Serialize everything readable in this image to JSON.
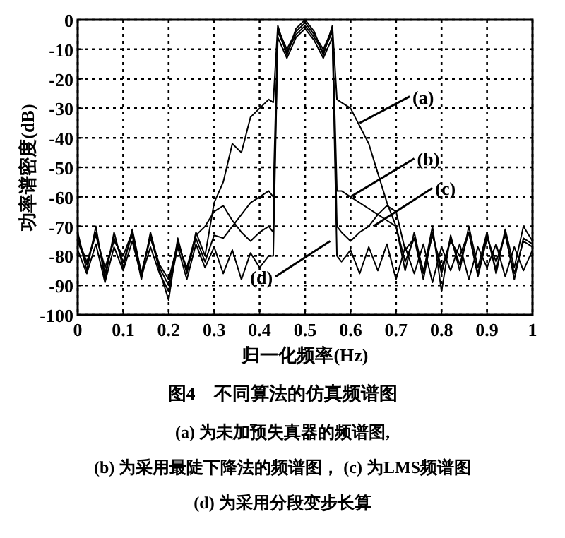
{
  "chart_data": {
    "type": "line",
    "title": "图4　不同算法的仿真频谱图",
    "xlabel": "归一化频率(Hz)",
    "ylabel": "功率谱密度(dB)",
    "x": [
      0,
      0.02,
      0.04,
      0.06,
      0.08,
      0.1,
      0.12,
      0.14,
      0.16,
      0.18,
      0.2,
      0.22,
      0.24,
      0.26,
      0.28,
      0.3,
      0.32,
      0.34,
      0.36,
      0.38,
      0.4,
      0.42,
      0.43,
      0.44,
      0.46,
      0.48,
      0.5,
      0.52,
      0.54,
      0.56,
      0.57,
      0.58,
      0.6,
      0.62,
      0.64,
      0.66,
      0.68,
      0.7,
      0.72,
      0.74,
      0.76,
      0.78,
      0.8,
      0.82,
      0.84,
      0.86,
      0.88,
      0.9,
      0.92,
      0.94,
      0.96,
      0.98,
      1
    ],
    "series": [
      {
        "color": "#000000",
        "values": [
          -72,
          -85,
          -70,
          -88,
          -72,
          -84,
          -71,
          -86,
          -73,
          -85,
          -95,
          -74,
          -86,
          -72,
          -80,
          -62,
          -55,
          -42,
          -45,
          -33,
          -30,
          -27,
          -28,
          -2,
          -12,
          -3,
          0,
          -4,
          -12,
          -2,
          -27,
          -28,
          -30,
          -36,
          -42,
          -52,
          -62,
          -70,
          -85,
          -72,
          -86,
          -70,
          -92,
          -73,
          -85,
          -70,
          -84,
          -72,
          -86,
          -71,
          -84,
          -70,
          -75
        ]
      },
      {
        "color": "#000000",
        "values": [
          -75,
          -83,
          -72,
          -86,
          -74,
          -82,
          -73,
          -88,
          -72,
          -84,
          -90,
          -75,
          -85,
          -74,
          -82,
          -73,
          -74,
          -70,
          -66,
          -62,
          -60,
          -58,
          -60,
          -3,
          -10,
          -4,
          -1,
          -5,
          -10,
          -3,
          -58,
          -58,
          -60,
          -62,
          -64,
          -66,
          -68,
          -70,
          -82,
          -74,
          -88,
          -72,
          -86,
          -74,
          -83,
          -72,
          -86,
          -73,
          -85,
          -72,
          -88,
          -74,
          -76
        ]
      },
      {
        "color": "#000000",
        "values": [
          -74,
          -82,
          -73,
          -84,
          -75,
          -80,
          -72,
          -86,
          -74,
          -83,
          -88,
          -76,
          -84,
          -73,
          -70,
          -65,
          -63,
          -68,
          -72,
          -75,
          -72,
          -70,
          -72,
          -4,
          -11,
          -5,
          -2,
          -6,
          -11,
          -4,
          -70,
          -72,
          -75,
          -72,
          -70,
          -66,
          -63,
          -65,
          -78,
          -74,
          -85,
          -73,
          -84,
          -75,
          -80,
          -72,
          -87,
          -74,
          -82,
          -73,
          -86,
          -75,
          -77
        ]
      },
      {
        "color": "#000000",
        "values": [
          -78,
          -86,
          -76,
          -89,
          -77,
          -85,
          -75,
          -87,
          -77,
          -86,
          -92,
          -77,
          -88,
          -76,
          -84,
          -77,
          -86,
          -78,
          -88,
          -79,
          -84,
          -80,
          -80,
          -6,
          -13,
          -6,
          -3,
          -7,
          -13,
          -6,
          -80,
          -82,
          -78,
          -86,
          -77,
          -85,
          -76,
          -88,
          -77,
          -86,
          -76,
          -89,
          -77,
          -85,
          -76,
          -88,
          -77,
          -84,
          -76,
          -87,
          -77,
          -85,
          -78
        ]
      }
    ],
    "xlim": [
      0,
      1
    ],
    "ylim": [
      -100,
      0
    ],
    "xticks": [
      0,
      0.1,
      0.2,
      0.3,
      0.4,
      0.5,
      0.6,
      0.7,
      0.8,
      0.9,
      1
    ],
    "yticks": [
      -100,
      -90,
      -80,
      -70,
      -60,
      -50,
      -40,
      -30,
      -20,
      -10,
      0
    ],
    "grid": true,
    "annotations": [
      {
        "text": "(a)",
        "x": 0.62,
        "y": -35
      },
      {
        "text": "(b)",
        "x": 0.6,
        "y": -60
      },
      {
        "text": "(c)",
        "x": 0.65,
        "y": -70
      },
      {
        "text": "(d)",
        "x": 0.555,
        "y": -75
      },
      "(a) 为未加预失真器的频谱图,",
      "(b) 为采用最陡下降法的频谱图，  (c) 为LMS频谱图",
      "(d) 为采用分段变步长算"
    ]
  }
}
